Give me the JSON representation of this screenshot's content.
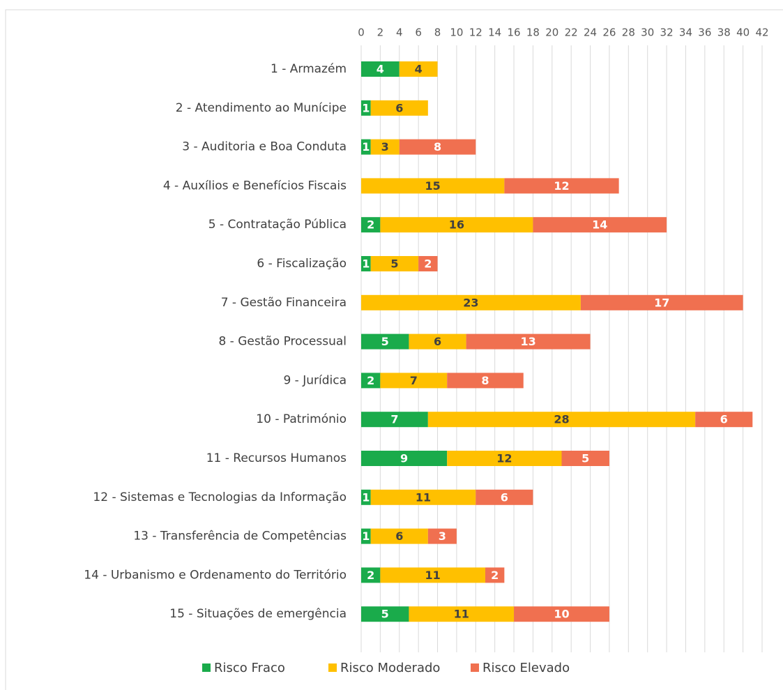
{
  "chart_data": {
    "type": "bar",
    "orientation": "horizontal",
    "stacked": true,
    "categories": [
      "1 - Armazém",
      "2 - Atendimento ao Munícipe",
      "3 - Auditoria e Boa Conduta",
      "4 - Auxílios e Benefícios Fiscais",
      "5 - Contratação Pública",
      "6 - Fiscalização",
      "7 - Gestão Financeira",
      "8 - Gestão Processual",
      "9 - Jurídica",
      "10 - Património",
      "11 - Recursos Humanos",
      "12 - Sistemas e Tecnologias da Informação",
      "13 - Transferência de Competências",
      "14 - Urbanismo e Ordenamento do Território",
      "15 - Situações de emergência"
    ],
    "series": [
      {
        "name": "Risco Fraco",
        "color": "#1aab4b",
        "values": [
          4,
          1,
          1,
          null,
          2,
          1,
          null,
          5,
          2,
          7,
          9,
          1,
          1,
          2,
          5
        ]
      },
      {
        "name": "Risco Moderado",
        "color": "#ffc000",
        "values": [
          4,
          6,
          3,
          15,
          16,
          5,
          23,
          6,
          7,
          28,
          12,
          11,
          6,
          11,
          11
        ]
      },
      {
        "name": "Risco Elevado",
        "color": "#f07050",
        "values": [
          null,
          null,
          8,
          12,
          14,
          2,
          17,
          13,
          8,
          6,
          5,
          6,
          3,
          2,
          10
        ]
      }
    ],
    "xlim": [
      0,
      42
    ],
    "xticks": [
      0,
      2,
      4,
      6,
      8,
      10,
      12,
      14,
      16,
      18,
      20,
      22,
      24,
      26,
      28,
      30,
      32,
      34,
      36,
      38,
      40,
      42
    ],
    "grid": true,
    "legend": "bottom"
  }
}
